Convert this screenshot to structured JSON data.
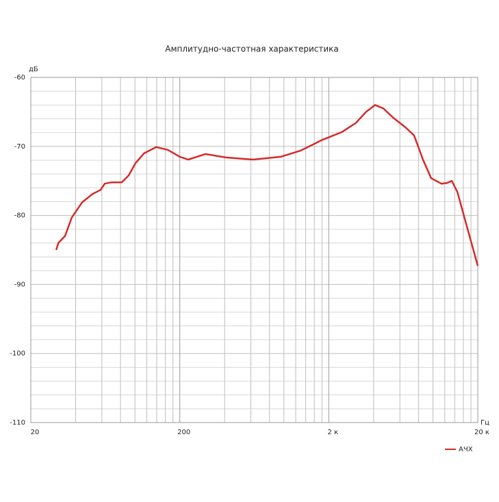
{
  "chart_data": {
    "type": "line",
    "title": "Амплитудно-частотная характеристика",
    "x_label": "Гц",
    "y_label": "дБ",
    "log_x": true,
    "grid": true,
    "legend": "bottom-right",
    "xlim": [
      20,
      20000
    ],
    "ylim": [
      -110,
      -60
    ],
    "xticks": [
      20,
      200,
      {
        "value": 2000,
        "label": "2 к"
      },
      {
        "value": 20000,
        "label": "20 к"
      }
    ],
    "yticks": [
      -60,
      -70,
      -80,
      -90,
      -100,
      -110
    ],
    "x": [
      29.6,
      30.6,
      33.9,
      37.7,
      44.2,
      51.8,
      58.8,
      62.7,
      69.7,
      81.6,
      90.8,
      101,
      115,
      139,
      166,
      200,
      228,
      297,
      407,
      622,
      950,
      1300,
      1790,
      2460,
      3040,
      3560,
      4090,
      4650,
      5450,
      6520,
      7470,
      8570,
      9730,
      11400,
      12400,
      13400,
      14600,
      20000
    ],
    "series": [
      {
        "name": "АЧХ",
        "color": "#d62a2a",
        "values": [
          -85.0,
          -84.0,
          -83.0,
          -80.3,
          -78.1,
          -76.9,
          -76.3,
          -75.4,
          -75.2,
          -75.2,
          -74.2,
          -72.4,
          -71.0,
          -70.1,
          -70.5,
          -71.5,
          -71.9,
          -71.1,
          -71.6,
          -71.9,
          -71.5,
          -70.6,
          -69.1,
          -67.9,
          -66.6,
          -65.0,
          -64.0,
          -64.5,
          -65.9,
          -67.2,
          -68.4,
          -71.9,
          -74.6,
          -75.4,
          -75.3,
          -75.0,
          -76.6,
          -87.3
        ]
      }
    ]
  }
}
